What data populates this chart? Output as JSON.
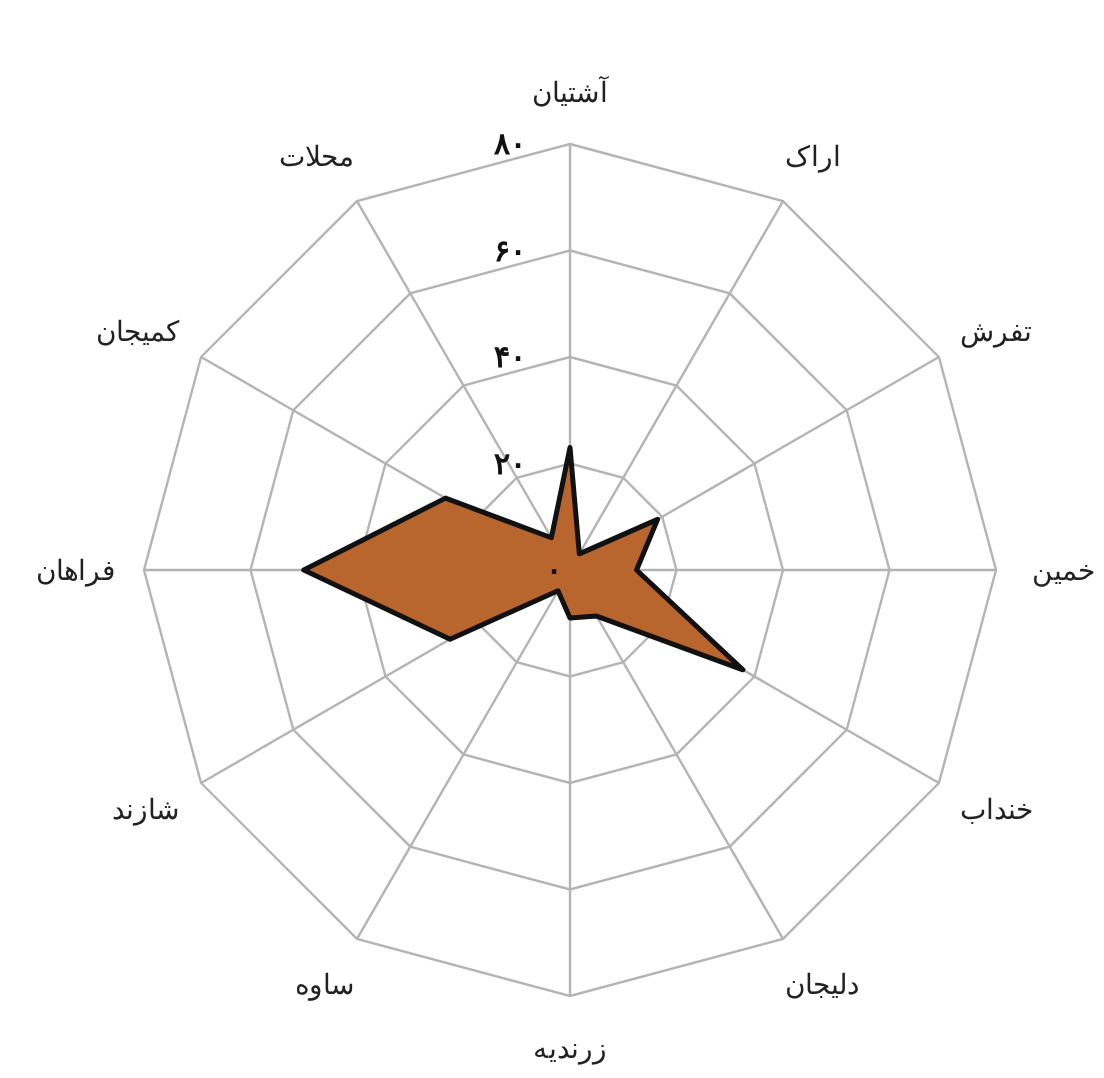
{
  "chart_data": {
    "type": "radar",
    "categories": [
      "آشتیان",
      "اراک",
      "تفرش",
      "خمین",
      "خنداب",
      "دلیجان",
      "زرندیه",
      "ساوه",
      "شازند",
      "فراهان",
      "کمیجان",
      "محلات"
    ],
    "series": [
      {
        "color": "#b8652e",
        "values": [
          23,
          3.5,
          19,
          12.5,
          37.5,
          10,
          9,
          4.5,
          26,
          50,
          27,
          7
        ]
      }
    ],
    "ylim": [
      0,
      80
    ],
    "yticks": [
      {
        "value": 0,
        "label": "۰"
      },
      {
        "value": 20,
        "label": "۲۰"
      },
      {
        "value": 40,
        "label": "۴۰"
      },
      {
        "value": 60,
        "label": "۶۰"
      },
      {
        "value": 80,
        "label": "۸۰"
      }
    ],
    "grid": true
  }
}
